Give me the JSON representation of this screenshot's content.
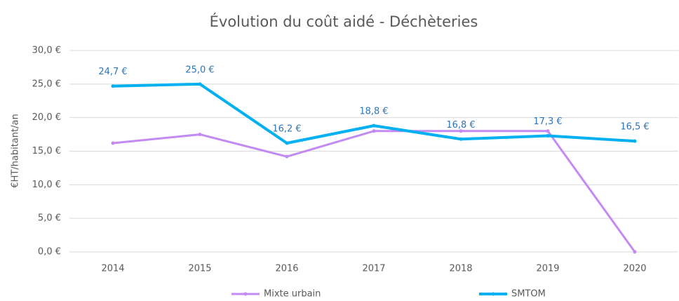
{
  "chart_data": {
    "type": "line",
    "title": "Évolution du coût aidé - Déchèteries",
    "y_label": "€HT/habitant/an",
    "categories": [
      "2014",
      "2015",
      "2016",
      "2017",
      "2018",
      "2019",
      "2020"
    ],
    "series": [
      {
        "name": "Mixte urbain",
        "color": "#c28af2",
        "values": [
          16.2,
          17.5,
          14.2,
          18.0,
          18.0,
          18.0,
          0
        ]
      },
      {
        "name": "SMTOM",
        "color": "#00b0f0",
        "values": [
          24.7,
          25.0,
          16.2,
          18.8,
          16.8,
          17.3,
          16.5
        ],
        "value_labels": [
          "24,7 €",
          "25,0 €",
          "16,2 €",
          "18,8 €",
          "16,8 €",
          "17,3 €",
          "16,5 €"
        ]
      }
    ],
    "ylim": [
      0,
      30
    ],
    "yticks": [
      {
        "value": 0,
        "label": "0,0 €"
      },
      {
        "value": 5,
        "label": "5,0 €"
      },
      {
        "value": 10,
        "label": "10,0 €"
      },
      {
        "value": 15,
        "label": "15,0 €"
      },
      {
        "value": 20,
        "label": "20,0 €"
      },
      {
        "value": 25,
        "label": "25,0 €"
      },
      {
        "value": 30,
        "label": "30,0 €"
      }
    ],
    "grid": true,
    "legend": "bottom"
  }
}
